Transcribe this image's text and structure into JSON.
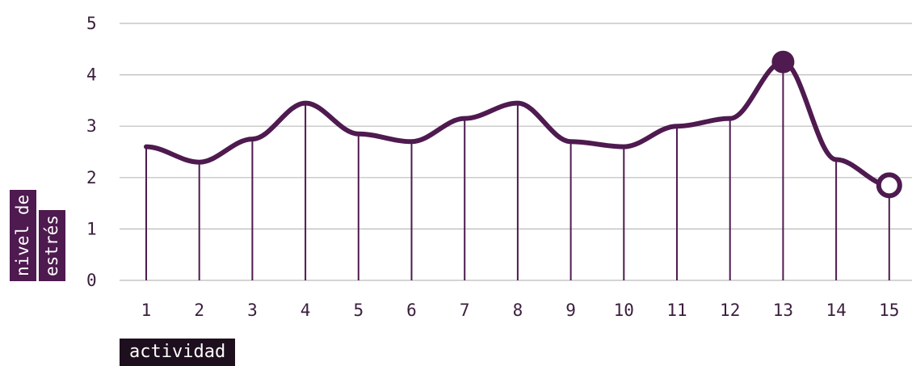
{
  "chart_data": {
    "type": "line",
    "xlabel": "actividad",
    "ylabel_lines": [
      "nivel de",
      "estrés"
    ],
    "x": [
      1,
      2,
      3,
      4,
      5,
      6,
      7,
      8,
      9,
      10,
      11,
      12,
      13,
      14,
      15
    ],
    "y": [
      2.6,
      2.3,
      2.75,
      3.45,
      2.85,
      2.7,
      3.15,
      3.45,
      2.7,
      2.6,
      3.0,
      3.15,
      4.25,
      2.35,
      1.85
    ],
    "ylim": [
      0,
      5
    ],
    "yticks": [
      0,
      1,
      2,
      3,
      4,
      5
    ],
    "grid": "horizontal",
    "highlight_max_index": 12,
    "highlight_last_index": 14,
    "colors": {
      "line": "#4e1a4f",
      "grid": "#bbbbbb",
      "stem": "#4e1a4f",
      "label_bg": "#4e1a4f",
      "xlabel_bg": "#1e0f1e"
    }
  }
}
